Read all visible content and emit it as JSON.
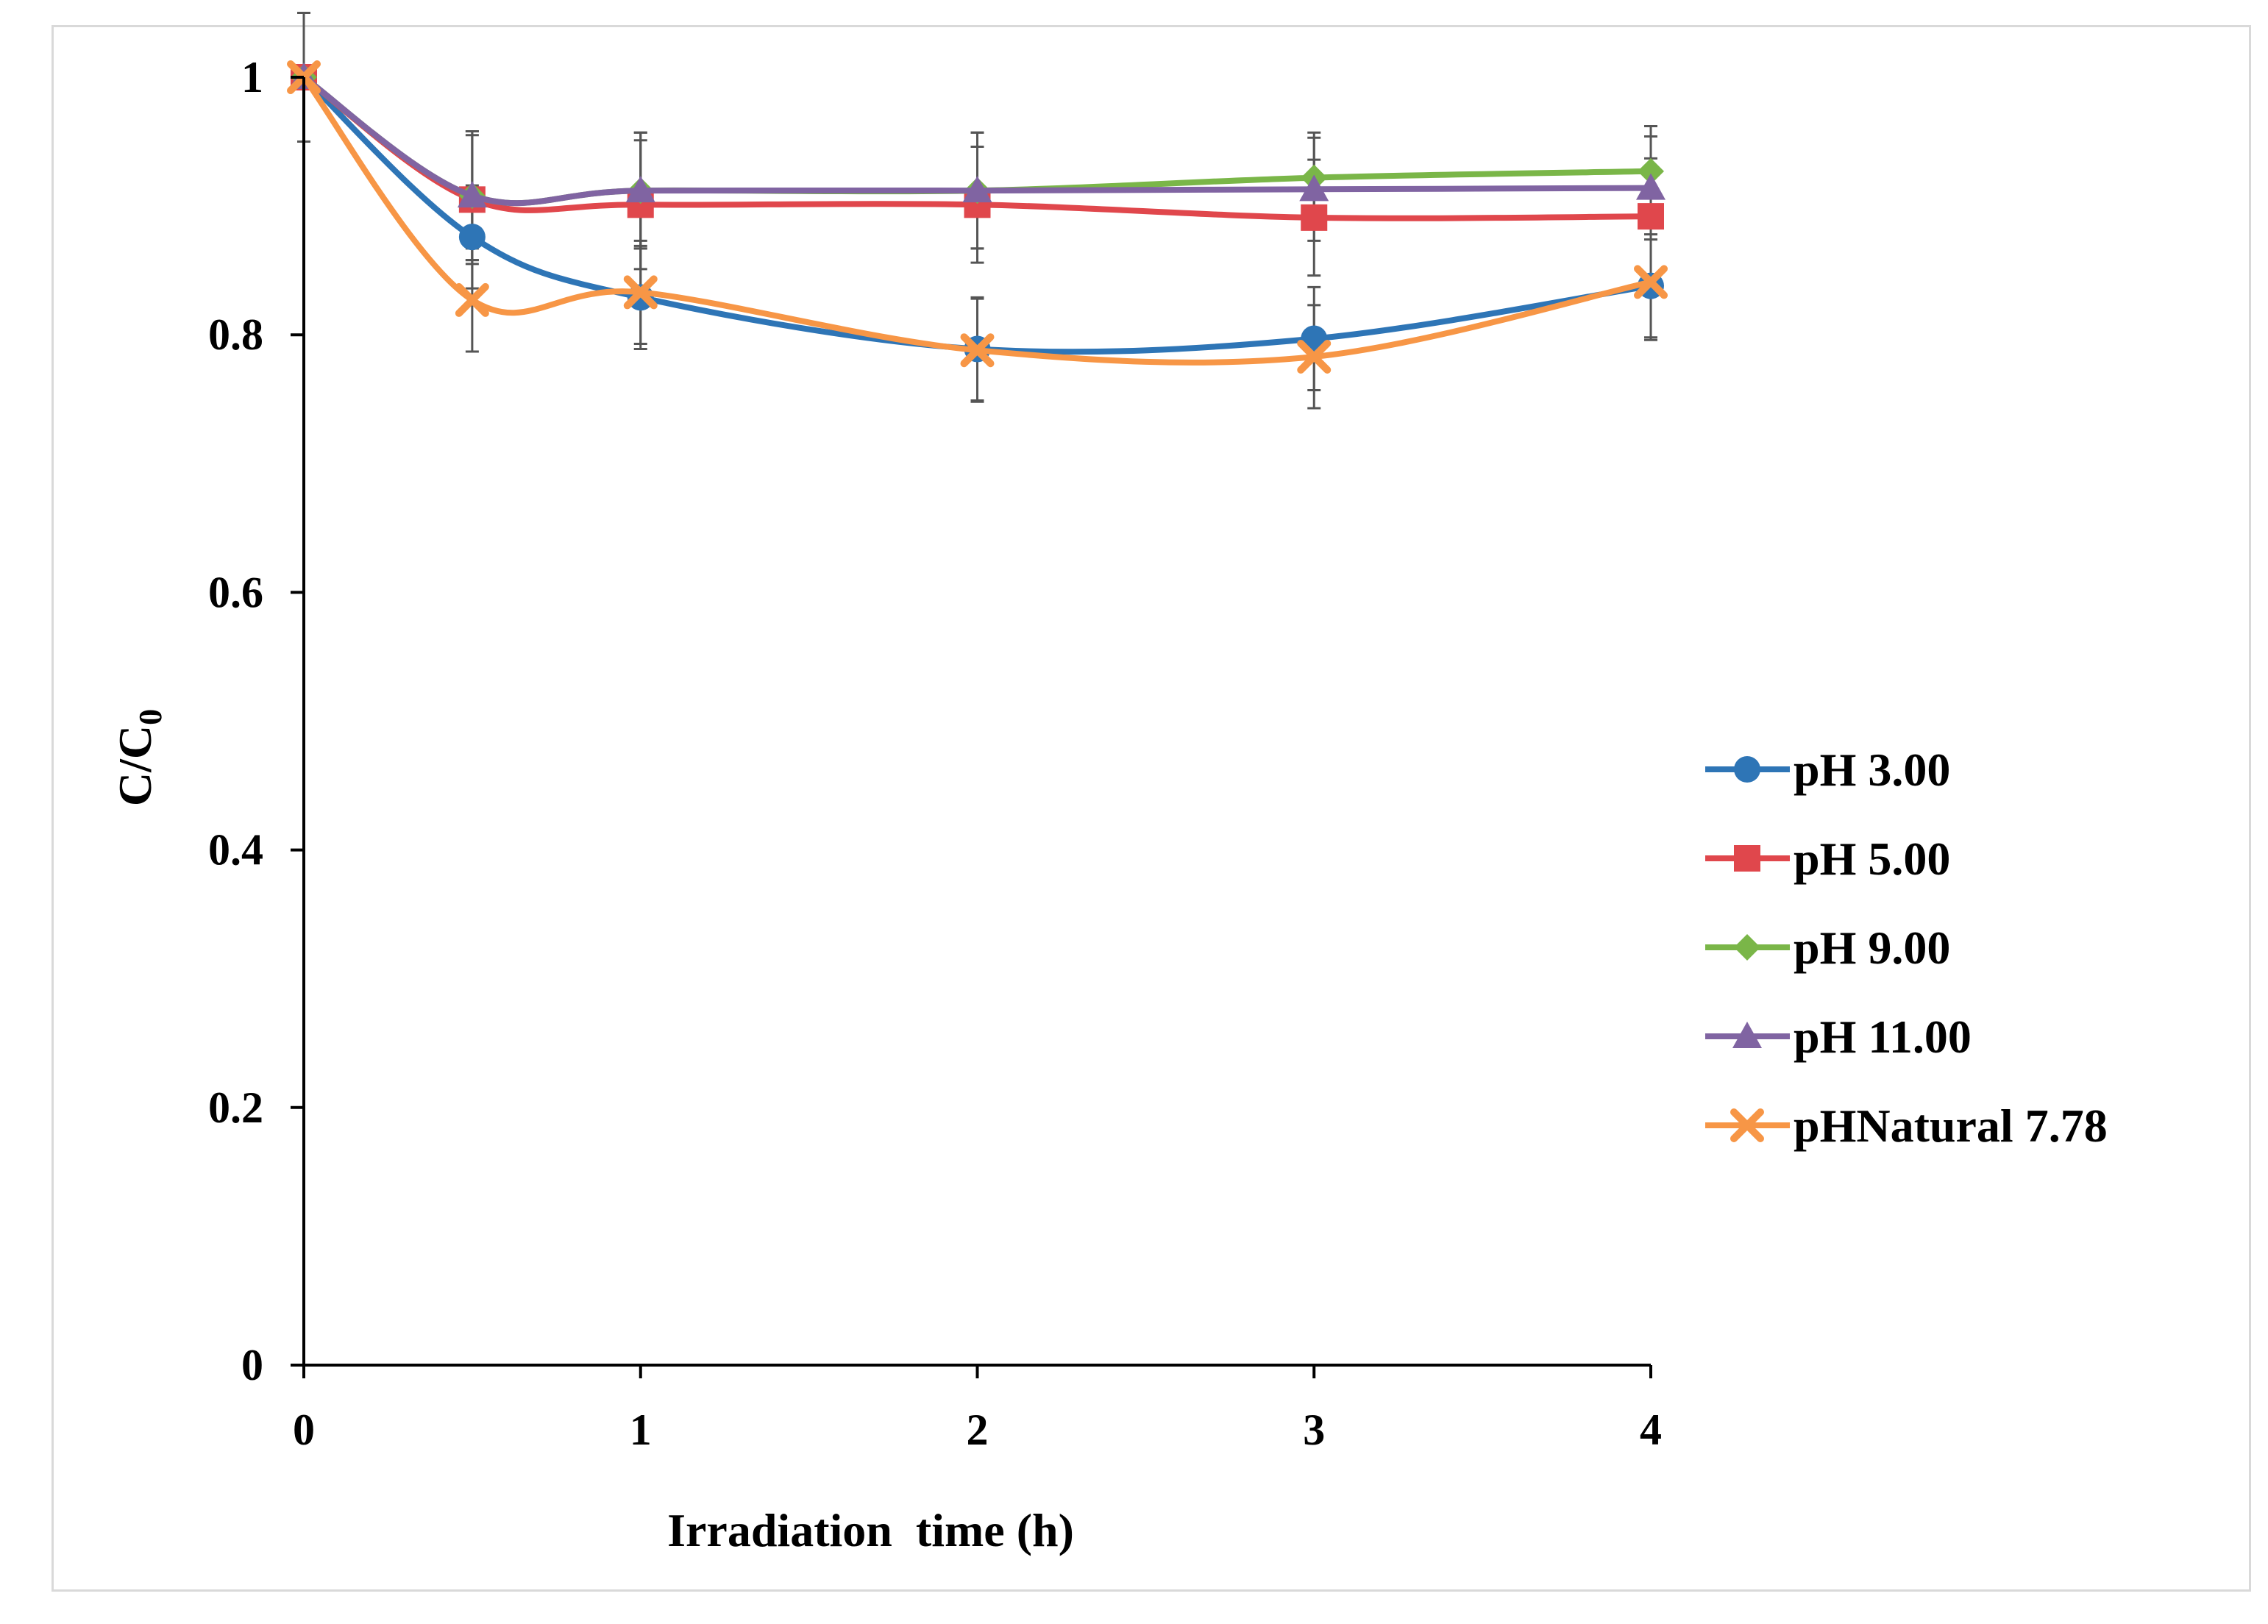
{
  "chart_data": {
    "type": "line",
    "title": "",
    "xlabel": "Irradiation  time (h)",
    "ylabel_main": "C/C",
    "ylabel_subscript": "0",
    "xlim": [
      0,
      4
    ],
    "ylim": [
      0,
      1
    ],
    "x_ticks": [
      0,
      1,
      2,
      3,
      4
    ],
    "x_tick_labels": [
      "0",
      "1",
      "2",
      "3",
      "4"
    ],
    "y_ticks": [
      0,
      0.2,
      0.4,
      0.6,
      0.8,
      1
    ],
    "y_tick_labels": [
      "0",
      "0.2",
      "0.4",
      "0.6",
      "0.8",
      "1"
    ],
    "grid": false,
    "legend_position": "right",
    "x": [
      0,
      0.5,
      1,
      2,
      3,
      4
    ],
    "series": [
      {
        "name": "pH 3.00",
        "color": "#2e75b6",
        "marker": "circle",
        "values": [
          1.0,
          0.876,
          0.829,
          0.789,
          0.797,
          0.838
        ],
        "errors": [
          0.05,
          0.04,
          0.04,
          0.04,
          0.04,
          0.04
        ]
      },
      {
        "name": "pH 5.00",
        "color": "#e0474c",
        "marker": "square",
        "values": [
          1.0,
          0.905,
          0.901,
          0.901,
          0.891,
          0.892
        ],
        "errors": [
          0.05,
          0.05,
          0.05,
          0.045,
          0.045,
          0.045
        ]
      },
      {
        "name": "pH 9.00",
        "color": "#7ab648",
        "marker": "diamond",
        "values": [
          1.0,
          0.908,
          0.912,
          0.912,
          0.922,
          0.927
        ],
        "errors": [
          0.05,
          0.05,
          0.045,
          0.045,
          0.035,
          0.035
        ]
      },
      {
        "name": "pH 11.00",
        "color": "#8064a2",
        "marker": "triangle",
        "values": [
          1.0,
          0.908,
          0.912,
          0.912,
          0.913,
          0.914
        ],
        "errors": [
          0.05,
          0.05,
          0.045,
          0.045,
          0.04,
          0.04
        ]
      },
      {
        "name": "pHNatural 7.78",
        "color": "#f79646",
        "marker": "x",
        "values": [
          1.0,
          0.827,
          0.833,
          0.788,
          0.783,
          0.841
        ],
        "errors": [
          0.05,
          0.04,
          0.04,
          0.04,
          0.04,
          0.045
        ]
      }
    ]
  }
}
